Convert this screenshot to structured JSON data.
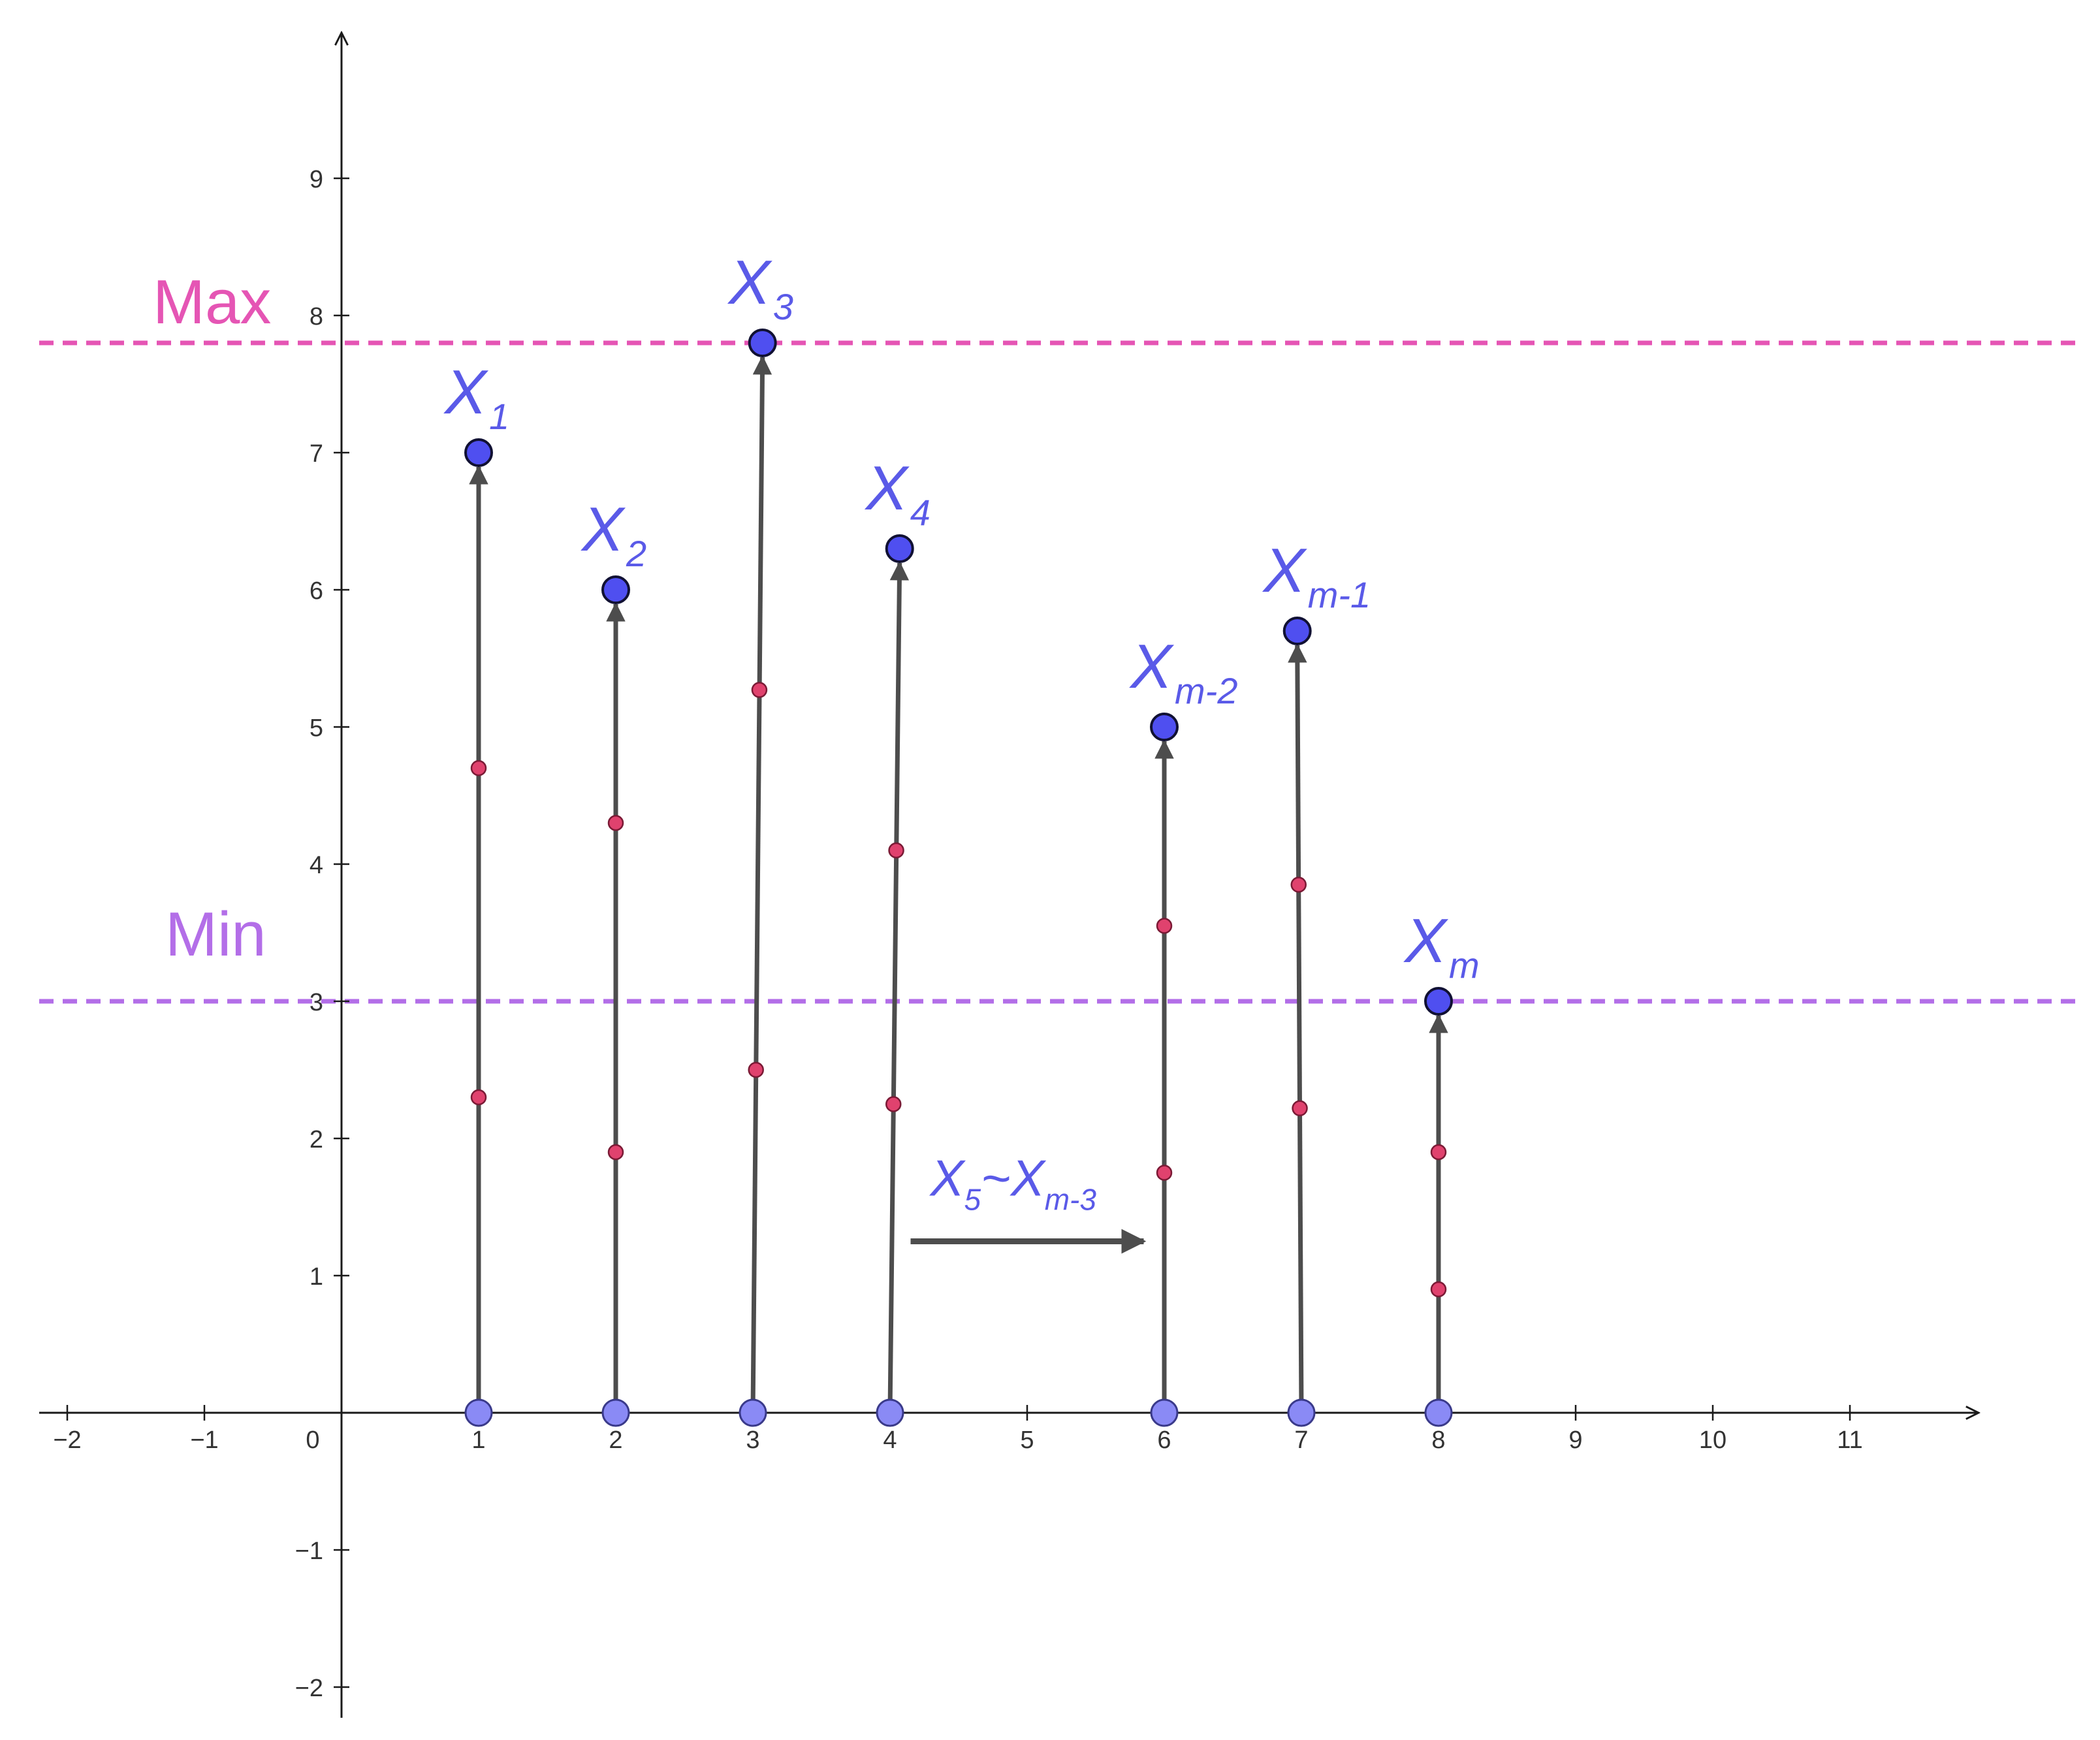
{
  "chart_data": {
    "type": "scatter",
    "title": "",
    "xlabel": "",
    "ylabel": "",
    "xlim": [
      -2.2,
      12
    ],
    "ylim": [
      -2.2,
      10
    ],
    "grid": false,
    "x_ticks": [
      -2,
      -1,
      1,
      2,
      3,
      4,
      5,
      6,
      7,
      8,
      9,
      10,
      11
    ],
    "y_ticks": [
      -2,
      -1,
      1,
      2,
      3,
      4,
      5,
      6,
      7,
      8,
      9
    ],
    "origin_label": "0",
    "reference_lines": [
      {
        "label": "Max",
        "y": 7.8,
        "color": "#e555b4"
      },
      {
        "label": "Min",
        "y": 3.0,
        "color": "#b36ee8"
      }
    ],
    "vectors": [
      {
        "label": "X",
        "sub": "1",
        "x0": 1,
        "x1": 1,
        "y": 7.0,
        "inner_points": [
          2.3,
          4.7
        ]
      },
      {
        "label": "X",
        "sub": "2",
        "x0": 2,
        "x1": 2,
        "y": 6.0,
        "inner_points": [
          1.9,
          4.3
        ]
      },
      {
        "label": "X",
        "sub": "3",
        "x0": 3,
        "x1": 3.07,
        "y": 7.8,
        "inner_points": [
          2.5,
          5.27
        ]
      },
      {
        "label": "X",
        "sub": "4",
        "x0": 4,
        "x1": 4.07,
        "y": 6.3,
        "inner_points": [
          2.25,
          4.1
        ]
      },
      {
        "label": "X",
        "sub": "m-2",
        "x0": 6,
        "x1": 6,
        "y": 5.0,
        "inner_points": [
          1.75,
          3.55
        ]
      },
      {
        "label": "X",
        "sub": "m-1",
        "x0": 7,
        "x1": 6.97,
        "y": 5.7,
        "inner_points": [
          2.22,
          3.85
        ]
      },
      {
        "label": "X",
        "sub": "m",
        "x0": 8,
        "x1": 8,
        "y": 3.0,
        "inner_points": [
          0.9,
          1.9
        ]
      }
    ],
    "skip_annotation": {
      "from_label": "X",
      "from_sub": "5",
      "separator": "~",
      "to_label": "X",
      "to_sub": "m-3",
      "arrow_from": [
        4.15,
        1.25
      ],
      "arrow_to": [
        5.85,
        1.25
      ]
    }
  },
  "colors": {
    "axis": "#1a1a1a",
    "vector": "#4d4d4d",
    "tip_point": "#4f4ff0",
    "base_point": "#8a8af5",
    "inner_point": "#e0426e",
    "vector_label": "#5a5ae8",
    "max_line": "#e555b4",
    "min_line": "#b36ee8"
  }
}
